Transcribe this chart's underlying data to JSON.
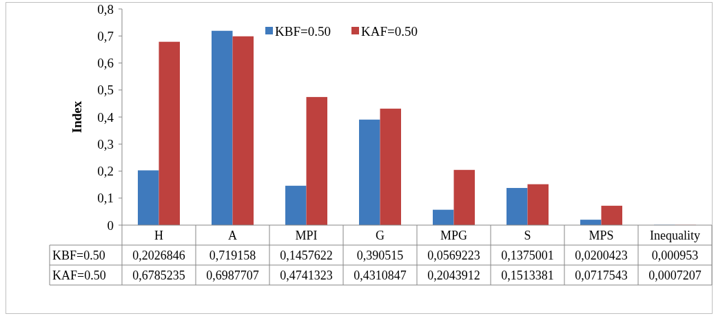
{
  "chart_data": {
    "type": "bar",
    "ylabel": "Index",
    "categories": [
      "H",
      "A",
      "MPI",
      "G",
      "MPG",
      "S",
      "MPS",
      "Inequality"
    ],
    "series": [
      {
        "name": "KBF=0.50",
        "color": "#3f7abd",
        "values": [
          0.2026846,
          0.719158,
          0.1457622,
          0.390515,
          0.0569223,
          0.1375001,
          0.0200423,
          0.000953
        ],
        "value_labels": [
          "0,2026846",
          "0,719158",
          "0,1457622",
          "0,390515",
          "0,0569223",
          "0,1375001",
          "0,0200423",
          "0,000953"
        ]
      },
      {
        "name": "KAF=0.50",
        "color": "#be413e",
        "values": [
          0.6785235,
          0.6987707,
          0.4741323,
          0.4310847,
          0.2043912,
          0.1513381,
          0.0717543,
          0.0007207
        ],
        "value_labels": [
          "0,6785235",
          "0,6987707",
          "0,4741323",
          "0,4310847",
          "0,2043912",
          "0,1513381",
          "0,0717543",
          "0,0007207"
        ]
      }
    ],
    "ylim": [
      0,
      0.8
    ],
    "yticks": [
      0,
      {
        "value": 0.1,
        "label": "0,1"
      },
      {
        "value": 0.2,
        "label": "0,2"
      },
      {
        "value": 0.3,
        "label": "0,3"
      },
      {
        "value": 0.4,
        "label": "0,4"
      },
      {
        "value": 0.5,
        "label": "0,5"
      },
      {
        "value": 0.6,
        "label": "0,6"
      },
      {
        "value": 0.7,
        "label": "0,7"
      },
      {
        "value": 0.8,
        "label": "0,8"
      }
    ],
    "grid": false,
    "legend": "top"
  }
}
